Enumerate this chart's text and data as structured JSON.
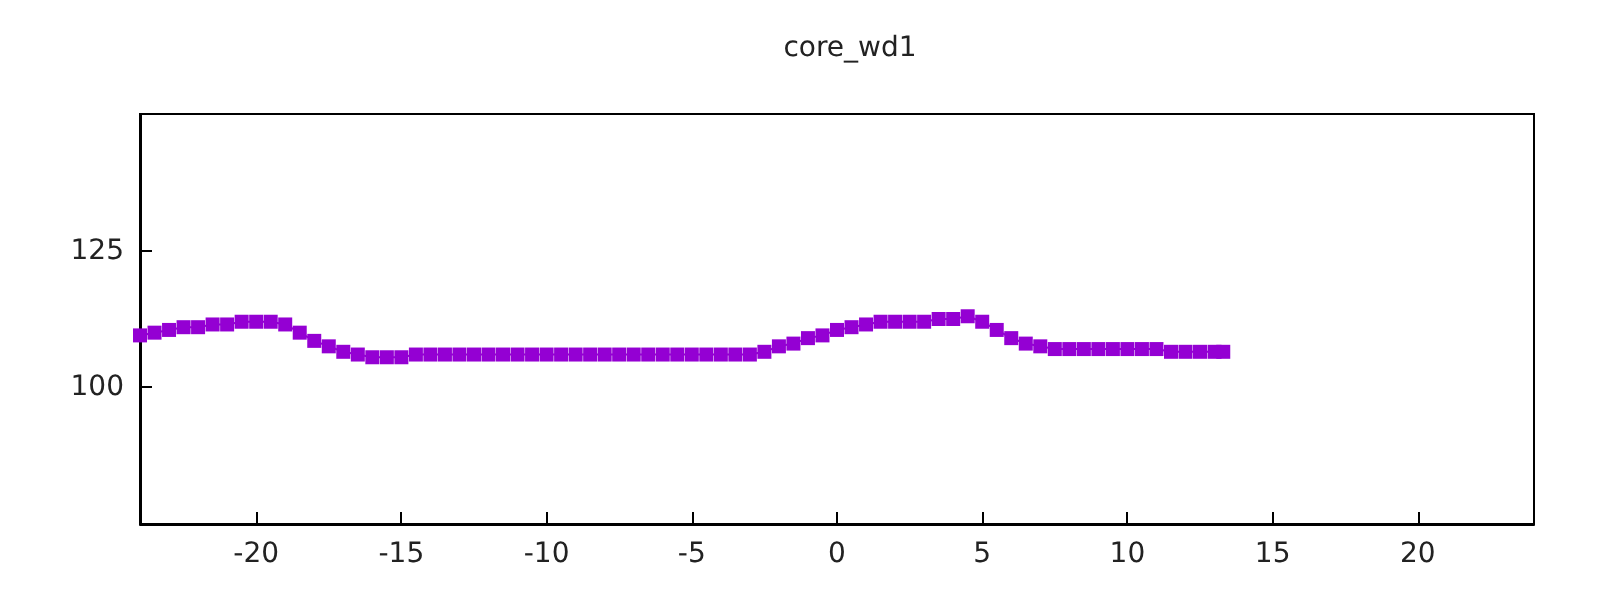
{
  "chart_data": {
    "type": "line",
    "title": "core_wd1",
    "x": [
      -24,
      -23.5,
      -23,
      -22.5,
      -22,
      -21.5,
      -21,
      -20.5,
      -20,
      -19.5,
      -19,
      -18.5,
      -18,
      -17.5,
      -17,
      -16.5,
      -16,
      -15.5,
      -15,
      -14.5,
      -14,
      -13.5,
      -13,
      -12.5,
      -12,
      -11.5,
      -11,
      -10.5,
      -10,
      -9.5,
      -9,
      -8.5,
      -8,
      -7.5,
      -7,
      -6.5,
      -6,
      -5.5,
      -5,
      -4.5,
      -4,
      -3.5,
      -3,
      -2.5,
      -2,
      -1.5,
      -1,
      -0.5,
      0,
      0.5,
      1,
      1.5,
      2,
      2.5,
      3,
      3.5,
      4,
      4.5,
      5,
      5.5,
      6,
      6.5,
      7,
      7.5,
      8,
      8.5,
      9,
      9.5,
      10,
      10.5,
      11,
      11.5,
      12,
      12.5,
      13,
      13.3
    ],
    "series": [
      {
        "color": "#9400d3",
        "values": [
          109.5,
          110,
          110.5,
          111,
          111,
          111.5,
          111.5,
          112,
          112,
          112,
          111.5,
          110,
          108.5,
          107.5,
          106.5,
          106,
          105.5,
          105.5,
          105.5,
          106,
          106,
          106,
          106,
          106,
          106,
          106,
          106,
          106,
          106,
          106,
          106,
          106,
          106,
          106,
          106,
          106,
          106,
          106,
          106,
          106,
          106,
          106,
          106,
          106.5,
          107.5,
          108,
          109,
          109.5,
          110.5,
          111,
          111.5,
          112,
          112,
          112,
          112,
          112.5,
          112.5,
          113,
          112,
          110.5,
          109,
          108,
          107.5,
          107,
          107,
          107,
          107,
          107,
          107,
          107,
          107,
          106.5,
          106.5,
          106.5,
          106.5,
          106.5
        ]
      }
    ],
    "xlim": [
      -24,
      24
    ],
    "xticks": [
      -20,
      -15,
      -10,
      -5,
      0,
      5,
      10,
      15,
      20
    ],
    "ylim": [
      75,
      150
    ],
    "yticks": [
      100,
      125
    ],
    "grid": false,
    "marker": "square",
    "line_style": "solid"
  }
}
